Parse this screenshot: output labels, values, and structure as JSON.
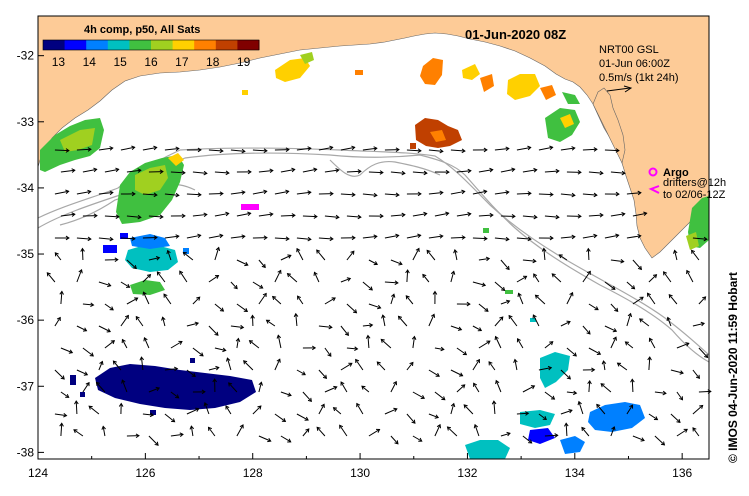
{
  "map": {
    "title": "01-Jun-2020 08Z",
    "colorbar": {
      "title": "4h comp, p50, All Sats",
      "ticks": [
        "13",
        "14",
        "15",
        "16",
        "17",
        "18",
        "19"
      ],
      "min": 12.5,
      "max": 19.5,
      "colors": [
        "#000080",
        "#0000ff",
        "#0080ff",
        "#00c0c0",
        "#40c040",
        "#a0d020",
        "#ffd000",
        "#ff8000",
        "#c04000",
        "#800000"
      ]
    },
    "current_info": {
      "line1": "NRT00 GSL",
      "line2": "01-Jun 06:00Z",
      "line3": "0.5m/s (1kt 24h)"
    },
    "legend": {
      "argo_label": "Argo",
      "drifters_line1": "drifters@12h",
      "drifters_line2": "to 02/06-12Z"
    },
    "credit": "© IMOS 04-Jun-2020 11:59 Hobart",
    "x_axis": {
      "ticks": [
        "124",
        "126",
        "128",
        "130",
        "132",
        "134",
        "136"
      ],
      "min": 124,
      "max": 136.5
    },
    "y_axis": {
      "ticks": [
        "-32",
        "-33",
        "-34",
        "-35",
        "-36",
        "-37",
        "-38"
      ],
      "min": -38.1,
      "max": -31.4
    },
    "colors": {
      "land": "#fdcb97",
      "ocean": "#ffffff",
      "bathy": "#a8a8a8",
      "arrow": "#000000",
      "argo": "#ff00ff"
    }
  }
}
